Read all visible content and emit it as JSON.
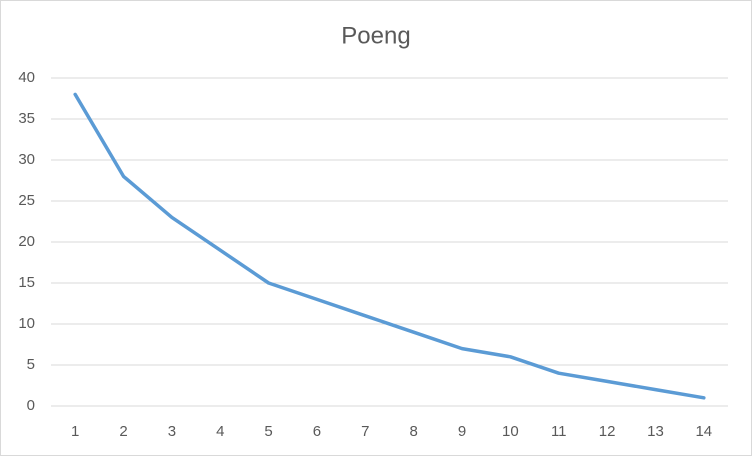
{
  "chart_data": {
    "type": "line",
    "title": "Poeng",
    "categories": [
      "1",
      "2",
      "3",
      "4",
      "5",
      "6",
      "7",
      "8",
      "9",
      "10",
      "11",
      "12",
      "13",
      "14"
    ],
    "values": [
      38,
      28,
      23,
      19,
      15,
      13,
      11,
      9,
      7,
      6,
      4,
      3,
      2,
      1
    ],
    "color": "#5b9bd5",
    "ylim": [
      0,
      40
    ],
    "yticks": [
      0,
      5,
      10,
      15,
      20,
      25,
      30,
      35,
      40
    ],
    "grid": true
  }
}
